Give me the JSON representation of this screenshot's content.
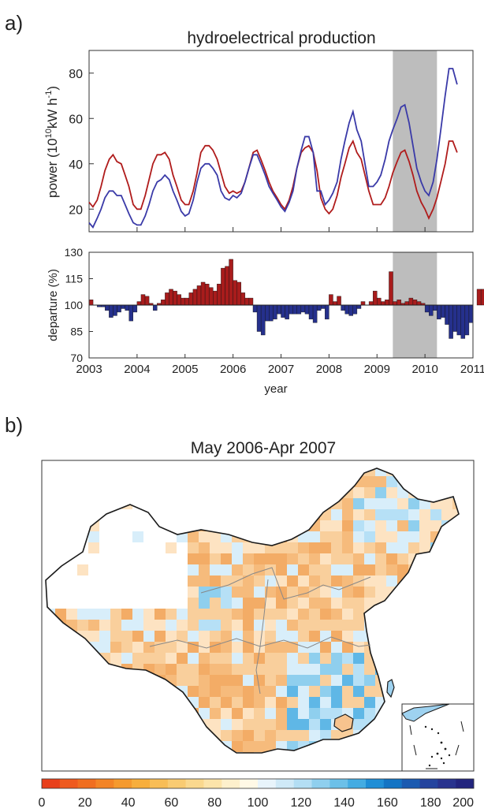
{
  "panel_a": {
    "label": "a)",
    "title": "hydroelectrical production"
  },
  "panel_b": {
    "label": "b)",
    "title": "May 2006-Apr 2007"
  },
  "colors": {
    "red_series": "#b01c1c",
    "blue_series": "#3a3aa8",
    "highlight": "#bdbdbd",
    "bar_positive": "#a81c1c",
    "bar_negative": "#25308c",
    "map_warm": "#f3b070",
    "map_cool": "#7fc4ea",
    "map_border": "#1a1a1a",
    "map_river": "#888888"
  },
  "colorbar": {
    "ticks": [
      "0",
      "20",
      "40",
      "60",
      "80",
      "100",
      "120",
      "140",
      "160",
      "180",
      "200"
    ],
    "colors": [
      "#e8401c",
      "#ee5a1e",
      "#f06e20",
      "#f38426",
      "#f59a2e",
      "#f7ae3c",
      "#f8bd56",
      "#f9cb72",
      "#fad88e",
      "#fce4aa",
      "#fdf0cc",
      "#fff9e6",
      "#e8f4fb",
      "#cfe9f7",
      "#b3def4",
      "#8fcfee",
      "#6cc0e8",
      "#44ace2",
      "#1f8ed6",
      "#1374c4",
      "#1a5ab0",
      "#24449e",
      "#28338e",
      "#22247e"
    ]
  },
  "chart_data": [
    {
      "type": "line",
      "title": "hydroelectrical production",
      "ylabel_main": "power (10",
      "ylabel_sup": "10",
      "ylabel_unit": "kW h",
      "ylabel_sup2": "-1",
      "ylabel_close": ")",
      "xlim": [
        2003,
        2011
      ],
      "ylim": [
        10,
        90
      ],
      "yticks": [
        "20",
        "40",
        "60",
        "80"
      ],
      "highlight_x": [
        2009.33,
        2010.25
      ],
      "series": [
        {
          "color": "red",
          "values": [
            [
              2003.0,
              23
            ],
            [
              2003.08,
              21
            ],
            [
              2003.17,
              24
            ],
            [
              2003.25,
              30
            ],
            [
              2003.33,
              37
            ],
            [
              2003.42,
              42
            ],
            [
              2003.5,
              44
            ],
            [
              2003.58,
              41
            ],
            [
              2003.67,
              40
            ],
            [
              2003.75,
              35
            ],
            [
              2003.83,
              30
            ],
            [
              2003.92,
              22
            ],
            [
              2004.0,
              20
            ],
            [
              2004.08,
              20
            ],
            [
              2004.17,
              26
            ],
            [
              2004.25,
              33
            ],
            [
              2004.33,
              40
            ],
            [
              2004.42,
              44
            ],
            [
              2004.5,
              44
            ],
            [
              2004.58,
              45
            ],
            [
              2004.67,
              42
            ],
            [
              2004.75,
              35
            ],
            [
              2004.83,
              30
            ],
            [
              2004.92,
              24
            ],
            [
              2005.0,
              22
            ],
            [
              2005.08,
              22
            ],
            [
              2005.17,
              28
            ],
            [
              2005.25,
              36
            ],
            [
              2005.33,
              45
            ],
            [
              2005.42,
              48
            ],
            [
              2005.5,
              48
            ],
            [
              2005.58,
              46
            ],
            [
              2005.67,
              42
            ],
            [
              2005.75,
              36
            ],
            [
              2005.83,
              30
            ],
            [
              2005.92,
              27
            ],
            [
              2006.0,
              28
            ],
            [
              2006.08,
              27
            ],
            [
              2006.17,
              28
            ],
            [
              2006.25,
              32
            ],
            [
              2006.33,
              38
            ],
            [
              2006.42,
              45
            ],
            [
              2006.5,
              46
            ],
            [
              2006.58,
              42
            ],
            [
              2006.67,
              37
            ],
            [
              2006.75,
              32
            ],
            [
              2006.83,
              28
            ],
            [
              2006.92,
              25
            ],
            [
              2007.0,
              22
            ],
            [
              2007.08,
              20
            ],
            [
              2007.17,
              24
            ],
            [
              2007.25,
              30
            ],
            [
              2007.33,
              38
            ],
            [
              2007.42,
              45
            ],
            [
              2007.5,
              47
            ],
            [
              2007.58,
              48
            ],
            [
              2007.67,
              45
            ],
            [
              2007.75,
              37
            ],
            [
              2007.83,
              25
            ],
            [
              2007.92,
              20
            ],
            [
              2008.0,
              18
            ],
            [
              2008.08,
              20
            ],
            [
              2008.17,
              26
            ],
            [
              2008.25,
              34
            ],
            [
              2008.33,
              40
            ],
            [
              2008.42,
              47
            ],
            [
              2008.5,
              50
            ],
            [
              2008.58,
              45
            ],
            [
              2008.67,
              42
            ],
            [
              2008.75,
              35
            ],
            [
              2008.83,
              28
            ],
            [
              2008.92,
              22
            ],
            [
              2009.0,
              22
            ],
            [
              2009.08,
              22
            ],
            [
              2009.17,
              25
            ],
            [
              2009.25,
              30
            ],
            [
              2009.33,
              36
            ],
            [
              2009.42,
              41
            ],
            [
              2009.5,
              45
            ],
            [
              2009.58,
              46
            ],
            [
              2009.67,
              41
            ],
            [
              2009.75,
              35
            ],
            [
              2009.83,
              28
            ],
            [
              2009.92,
              23
            ],
            [
              2010.0,
              20
            ],
            [
              2010.08,
              16
            ],
            [
              2010.17,
              20
            ],
            [
              2010.25,
              25
            ],
            [
              2010.33,
              32
            ],
            [
              2010.42,
              40
            ],
            [
              2010.5,
              50
            ],
            [
              2010.58,
              50
            ],
            [
              2010.67,
              45
            ]
          ]
        },
        {
          "color": "blue",
          "values": [
            [
              2003.0,
              14
            ],
            [
              2003.08,
              12
            ],
            [
              2003.17,
              16
            ],
            [
              2003.25,
              20
            ],
            [
              2003.33,
              25
            ],
            [
              2003.42,
              28
            ],
            [
              2003.5,
              28
            ],
            [
              2003.58,
              26
            ],
            [
              2003.67,
              26
            ],
            [
              2003.75,
              22
            ],
            [
              2003.83,
              18
            ],
            [
              2003.92,
              14
            ],
            [
              2004.0,
              13
            ],
            [
              2004.08,
              13
            ],
            [
              2004.17,
              17
            ],
            [
              2004.25,
              22
            ],
            [
              2004.33,
              28
            ],
            [
              2004.42,
              32
            ],
            [
              2004.5,
              33
            ],
            [
              2004.58,
              35
            ],
            [
              2004.67,
              33
            ],
            [
              2004.75,
              28
            ],
            [
              2004.83,
              24
            ],
            [
              2004.92,
              19
            ],
            [
              2005.0,
              17
            ],
            [
              2005.08,
              18
            ],
            [
              2005.17,
              24
            ],
            [
              2005.25,
              32
            ],
            [
              2005.33,
              38
            ],
            [
              2005.42,
              40
            ],
            [
              2005.5,
              40
            ],
            [
              2005.58,
              38
            ],
            [
              2005.67,
              35
            ],
            [
              2005.75,
              28
            ],
            [
              2005.83,
              25
            ],
            [
              2005.92,
              24
            ],
            [
              2006.0,
              26
            ],
            [
              2006.08,
              25
            ],
            [
              2006.17,
              27
            ],
            [
              2006.25,
              32
            ],
            [
              2006.33,
              38
            ],
            [
              2006.42,
              44
            ],
            [
              2006.5,
              44
            ],
            [
              2006.58,
              40
            ],
            [
              2006.67,
              35
            ],
            [
              2006.75,
              30
            ],
            [
              2006.83,
              27
            ],
            [
              2006.92,
              24
            ],
            [
              2007.0,
              21
            ],
            [
              2007.08,
              19
            ],
            [
              2007.17,
              23
            ],
            [
              2007.25,
              28
            ],
            [
              2007.33,
              38
            ],
            [
              2007.42,
              46
            ],
            [
              2007.5,
              52
            ],
            [
              2007.58,
              52
            ],
            [
              2007.67,
              45
            ],
            [
              2007.75,
              28
            ],
            [
              2007.83,
              28
            ],
            [
              2007.92,
              22
            ],
            [
              2008.0,
              24
            ],
            [
              2008.08,
              27
            ],
            [
              2008.17,
              32
            ],
            [
              2008.25,
              42
            ],
            [
              2008.33,
              50
            ],
            [
              2008.42,
              58
            ],
            [
              2008.5,
              63
            ],
            [
              2008.58,
              55
            ],
            [
              2008.67,
              50
            ],
            [
              2008.75,
              40
            ],
            [
              2008.83,
              30
            ],
            [
              2008.92,
              30
            ],
            [
              2009.0,
              32
            ],
            [
              2009.08,
              35
            ],
            [
              2009.17,
              42
            ],
            [
              2009.25,
              50
            ],
            [
              2009.33,
              55
            ],
            [
              2009.42,
              60
            ],
            [
              2009.5,
              65
            ],
            [
              2009.58,
              66
            ],
            [
              2009.67,
              58
            ],
            [
              2009.75,
              48
            ],
            [
              2009.83,
              38
            ],
            [
              2009.92,
              32
            ],
            [
              2010.0,
              28
            ],
            [
              2010.08,
              26
            ],
            [
              2010.17,
              32
            ],
            [
              2010.25,
              42
            ],
            [
              2010.33,
              55
            ],
            [
              2010.42,
              70
            ],
            [
              2010.5,
              82
            ],
            [
              2010.58,
              82
            ],
            [
              2010.67,
              75
            ]
          ]
        }
      ]
    },
    {
      "type": "bar",
      "ylabel": "departure (%)",
      "xlabel": "year",
      "xlim": [
        2003,
        2011
      ],
      "ylim": [
        70,
        130
      ],
      "baseline": 100,
      "yticks": [
        "70",
        "85",
        "100",
        "115",
        "130"
      ],
      "xticks": [
        "2003",
        "2004",
        "2005",
        "2006",
        "2007",
        "2008",
        "2009",
        "2010",
        "2011"
      ],
      "highlight_x": [
        2009.33,
        2010.25
      ],
      "values": [
        103,
        100,
        99,
        99,
        97,
        93,
        94,
        96,
        98,
        97,
        91,
        96,
        102,
        106,
        105,
        101,
        97,
        101,
        103,
        107,
        109,
        108,
        106,
        104,
        104,
        107,
        109,
        111,
        113,
        112,
        110,
        108,
        112,
        121,
        122,
        126,
        114,
        113,
        107,
        104,
        104,
        96,
        85,
        83,
        91,
        91,
        92,
        95,
        93,
        92,
        95,
        95,
        95,
        96,
        95,
        92,
        90,
        97,
        98,
        92,
        106,
        102,
        105,
        97,
        95,
        94,
        95,
        98,
        102,
        100,
        102,
        108,
        104,
        102,
        103,
        119,
        102,
        103,
        101,
        102,
        104,
        103,
        102,
        101,
        96,
        94,
        97,
        92,
        93,
        89,
        81,
        85,
        83,
        81,
        83,
        90,
        100,
        109,
        109,
        108
      ]
    }
  ]
}
